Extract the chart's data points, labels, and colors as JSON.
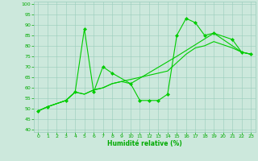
{
  "line1_x": [
    0,
    1,
    3,
    4,
    5,
    6,
    7,
    8,
    10,
    11,
    12,
    13,
    14,
    15,
    16,
    17,
    18,
    19,
    21,
    22,
    23
  ],
  "line1_y": [
    49,
    51,
    54,
    58,
    88,
    58,
    70,
    67,
    62,
    54,
    54,
    54,
    57,
    85,
    93,
    91,
    85,
    86,
    83,
    77,
    76
  ],
  "line2_x": [
    0,
    1,
    3,
    4,
    5,
    6,
    7,
    8,
    9,
    10,
    15,
    19,
    22,
    23
  ],
  "line2_y": [
    49,
    51,
    54,
    58,
    57,
    59,
    60,
    62,
    63,
    62,
    75,
    86,
    77,
    76
  ],
  "line3_x": [
    0,
    1,
    3,
    4,
    5,
    6,
    7,
    8,
    9,
    10,
    11,
    12,
    13,
    14,
    15,
    16,
    17,
    18,
    19,
    21,
    22,
    23
  ],
  "line3_y": [
    49,
    51,
    54,
    58,
    57,
    59,
    60,
    62,
    63,
    64,
    65,
    66,
    67,
    68,
    72,
    76,
    79,
    80,
    82,
    79,
    77,
    76
  ],
  "line_color": "#00cc00",
  "bg_color": "#cce8dc",
  "grid_color": "#99ccbb",
  "xlabel": "Humidité relative (%)",
  "tick_color": "#00aa00",
  "yticks": [
    40,
    45,
    50,
    55,
    60,
    65,
    70,
    75,
    80,
    85,
    90,
    95,
    100
  ],
  "xticks": [
    0,
    1,
    2,
    3,
    4,
    5,
    6,
    7,
    8,
    9,
    10,
    11,
    12,
    13,
    14,
    15,
    16,
    17,
    18,
    19,
    20,
    21,
    22,
    23
  ],
  "ylim": [
    39,
    101
  ],
  "xlim": [
    -0.5,
    23.5
  ],
  "marker": "D",
  "marker_size": 2.0,
  "linewidth": 0.8
}
